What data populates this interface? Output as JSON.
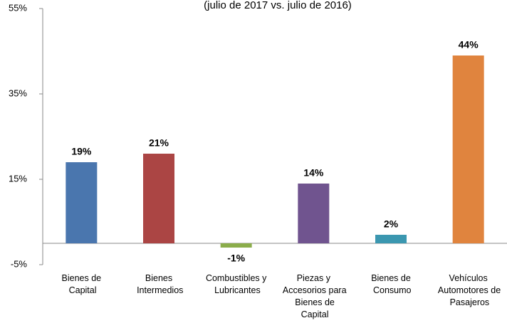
{
  "chart_data": {
    "type": "bar",
    "subtitle": "(julio de 2017 vs. julio de 2016)",
    "categories": [
      "Bienes de Capital",
      "Bienes Intermedios",
      "Combustibles y Lubricantes",
      "Piezas y Accesorios para Bienes de Capital",
      "Bienes de Consumo",
      "Vehículos Automotores de Pasajeros"
    ],
    "values": [
      19,
      21,
      -1,
      14,
      2,
      44
    ],
    "value_labels": [
      "19%",
      "21%",
      "-1%",
      "14%",
      "2%",
      "44%"
    ],
    "colors": [
      "#4a76ae",
      "#ab4544",
      "#8bad4b",
      "#70548f",
      "#3b97b0",
      "#e0843e"
    ],
    "ylim": [
      -5,
      55
    ],
    "yticks": [
      {
        "value": -5,
        "label": "-5%"
      },
      {
        "value": 15,
        "label": "15%"
      },
      {
        "value": 35,
        "label": "35%"
      },
      {
        "value": 55,
        "label": "55%"
      }
    ]
  }
}
